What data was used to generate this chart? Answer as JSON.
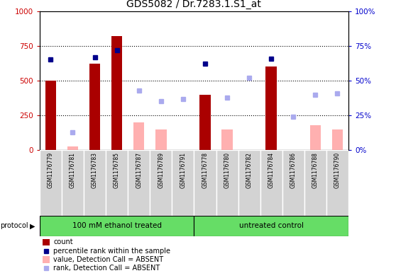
{
  "title": "GDS5082 / Dr.7283.1.S1_at",
  "samples": [
    "GSM1176779",
    "GSM1176781",
    "GSM1176783",
    "GSM1176785",
    "GSM1176787",
    "GSM1176789",
    "GSM1176791",
    "GSM1176778",
    "GSM1176780",
    "GSM1176782",
    "GSM1176784",
    "GSM1176786",
    "GSM1176788",
    "GSM1176790"
  ],
  "count_values": [
    500,
    0,
    620,
    820,
    0,
    0,
    0,
    400,
    0,
    0,
    600,
    0,
    0,
    0
  ],
  "count_absent": [
    0,
    25,
    0,
    0,
    200,
    150,
    0,
    0,
    150,
    0,
    0,
    0,
    180,
    150
  ],
  "rank_present_pct": [
    65,
    null,
    67,
    72,
    null,
    null,
    null,
    62,
    null,
    null,
    66,
    null,
    null,
    null
  ],
  "rank_absent_pct": [
    null,
    13,
    null,
    null,
    43,
    35,
    37,
    null,
    38,
    52,
    null,
    24,
    40,
    41
  ],
  "protocol_groups": [
    {
      "label": "100 mM ethanol treated",
      "start": 0,
      "end": 7,
      "color": "#66DD66"
    },
    {
      "label": "untreated control",
      "start": 7,
      "end": 14,
      "color": "#66DD66"
    }
  ],
  "bar_color_present": "#AA0000",
  "bar_color_absent": "#FFB0B0",
  "dot_color_present": "#00008B",
  "dot_color_absent": "#AAAAEE",
  "ylim_left": [
    0,
    1000
  ],
  "ylim_right": [
    0,
    100
  ],
  "ylabel_left_color": "#CC0000",
  "ylabel_right_color": "#0000CC",
  "yticks_left": [
    0,
    250,
    500,
    750,
    1000
  ],
  "yticks_right": [
    0,
    25,
    50,
    75,
    100
  ],
  "grid_lines": [
    250,
    500,
    750
  ]
}
